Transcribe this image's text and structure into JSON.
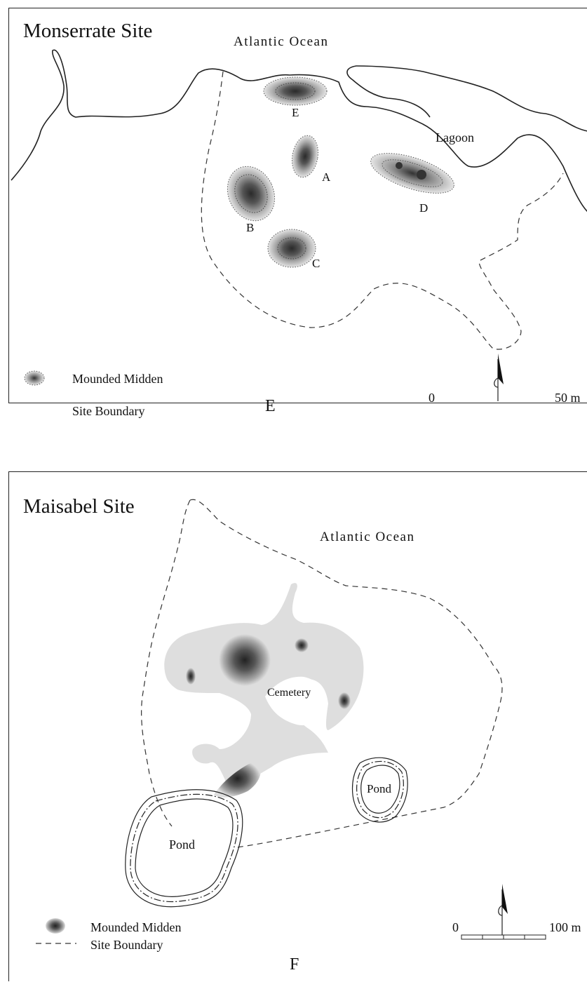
{
  "panel_e": {
    "title": "Monserrate Site",
    "ocean": "Atlantic Ocean",
    "lagoon": "Lagoon",
    "middens": [
      "A",
      "B",
      "C",
      "D",
      "E"
    ],
    "legend": {
      "midden": "Mounded Midden",
      "boundary": "Site Boundary"
    },
    "panel_letter": "E",
    "scale": {
      "start": "0",
      "end": "50 m"
    }
  },
  "panel_f": {
    "title": "Maisabel Site",
    "ocean": "Atlantic Ocean",
    "cemetery": "Cemetery",
    "pond_small": "Pond",
    "pond_large": "Pond",
    "legend": {
      "midden": "Mounded Midden",
      "boundary": "Site Boundary"
    },
    "panel_letter": "F",
    "scale": {
      "start": "0",
      "end": "100 m"
    }
  },
  "colors": {
    "line": "#222222",
    "midden_core": "#3a3a3a",
    "midden_halo": "#d8d8d8",
    "cemetery_fill": "#dedede"
  }
}
